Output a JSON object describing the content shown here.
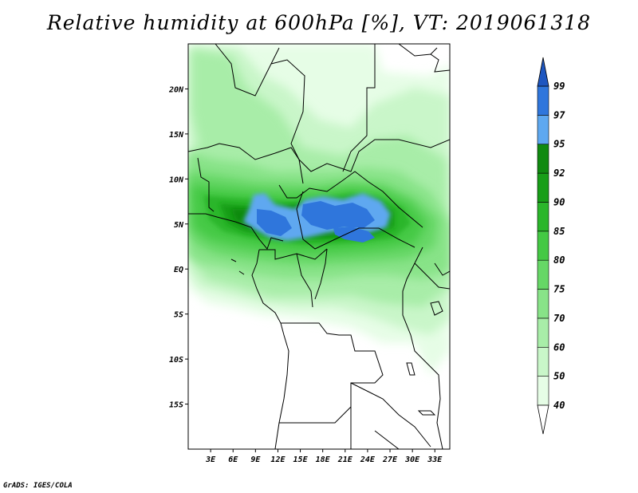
{
  "title": "Relative humidity at 600hPa [%], VT: 2019061318",
  "credit": "GrADS: IGES/COLA",
  "map": {
    "lon_range": [
      0,
      35
    ],
    "lat_range": [
      -20,
      25
    ],
    "lat_ticks": [
      {
        "value": 20,
        "label": "20N"
      },
      {
        "value": 15,
        "label": "15N"
      },
      {
        "value": 10,
        "label": "10N"
      },
      {
        "value": 5,
        "label": "5N"
      },
      {
        "value": 0,
        "label": "EQ"
      },
      {
        "value": -5,
        "label": "5S"
      },
      {
        "value": -10,
        "label": "10S"
      },
      {
        "value": -15,
        "label": "15S"
      }
    ],
    "lon_ticks": [
      {
        "value": 3,
        "label": "3E"
      },
      {
        "value": 6,
        "label": "6E"
      },
      {
        "value": 9,
        "label": "9E"
      },
      {
        "value": 12,
        "label": "12E"
      },
      {
        "value": 15,
        "label": "15E"
      },
      {
        "value": 18,
        "label": "18E"
      },
      {
        "value": 21,
        "label": "21E"
      },
      {
        "value": 24,
        "label": "24E"
      },
      {
        "value": 27,
        "label": "27E"
      },
      {
        "value": 30,
        "label": "30E"
      },
      {
        "value": 33,
        "label": "33E"
      }
    ]
  },
  "colorbar": {
    "levels": [
      "40",
      "50",
      "60",
      "70",
      "75",
      "80",
      "85",
      "90",
      "92",
      "95",
      "97",
      "99"
    ],
    "colors": [
      "#ffffff",
      "#e6fde6",
      "#c9f6c9",
      "#a8eda8",
      "#88e388",
      "#66d766",
      "#44c944",
      "#2ab62a",
      "#189e18",
      "#108a10",
      "#5ea8f0",
      "#2f76dc",
      "#1e56c0"
    ]
  },
  "palette": {
    "land": "#ffffff",
    "border": "#000000"
  }
}
